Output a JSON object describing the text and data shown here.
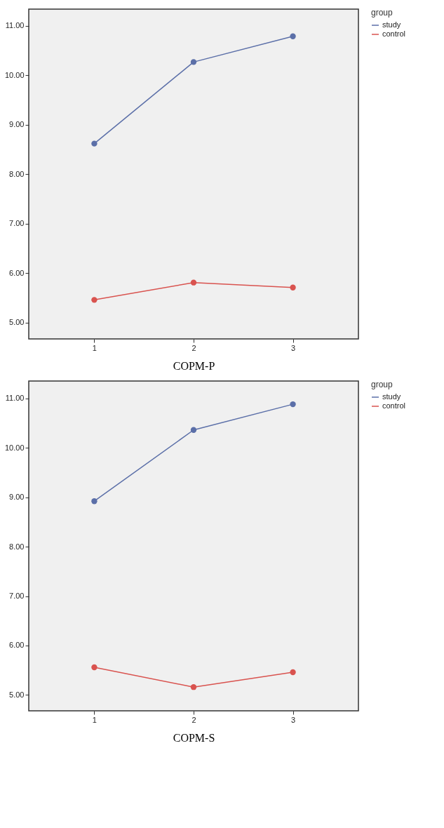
{
  "chart_data": [
    {
      "type": "line",
      "xlabel": "COPM-P",
      "legend_title": "group",
      "categories": [
        "1",
        "2",
        "3"
      ],
      "series": [
        {
          "name": "study",
          "color": "#5b6fa8",
          "values": [
            8.62,
            10.27,
            10.79
          ]
        },
        {
          "name": "control",
          "color": "#d9534f",
          "values": [
            5.46,
            5.81,
            5.71
          ]
        }
      ],
      "ylim": [
        4.67,
        11.34
      ],
      "yticks": [
        {
          "value": 5,
          "label": "5.00"
        },
        {
          "value": 6,
          "label": "6.00"
        },
        {
          "value": 7,
          "label": "7.00"
        },
        {
          "value": 8,
          "label": "8.00"
        },
        {
          "value": 9,
          "label": "9.00"
        },
        {
          "value": 10,
          "label": "10.00"
        },
        {
          "value": 11,
          "label": "11.00"
        }
      ],
      "grid": false,
      "legend": "top right",
      "marker": "circle",
      "line_style": "solid"
    },
    {
      "type": "line",
      "xlabel": "COPM-S",
      "legend_title": "group",
      "categories": [
        "1",
        "2",
        "3"
      ],
      "series": [
        {
          "name": "study",
          "color": "#5b6fa8",
          "values": [
            8.92,
            10.36,
            10.88
          ]
        },
        {
          "name": "control",
          "color": "#d9534f",
          "values": [
            5.56,
            5.16,
            5.46
          ]
        }
      ],
      "ylim": [
        4.68,
        11.35
      ],
      "yticks": [
        {
          "value": 5,
          "label": "5.00"
        },
        {
          "value": 6,
          "label": "6.00"
        },
        {
          "value": 7,
          "label": "7.00"
        },
        {
          "value": 8,
          "label": "8.00"
        },
        {
          "value": 9,
          "label": "9.00"
        },
        {
          "value": 10,
          "label": "10.00"
        },
        {
          "value": 11,
          "label": "11.00"
        }
      ],
      "grid": false,
      "legend": "top right",
      "marker": "circle",
      "line_style": "solid"
    }
  ]
}
